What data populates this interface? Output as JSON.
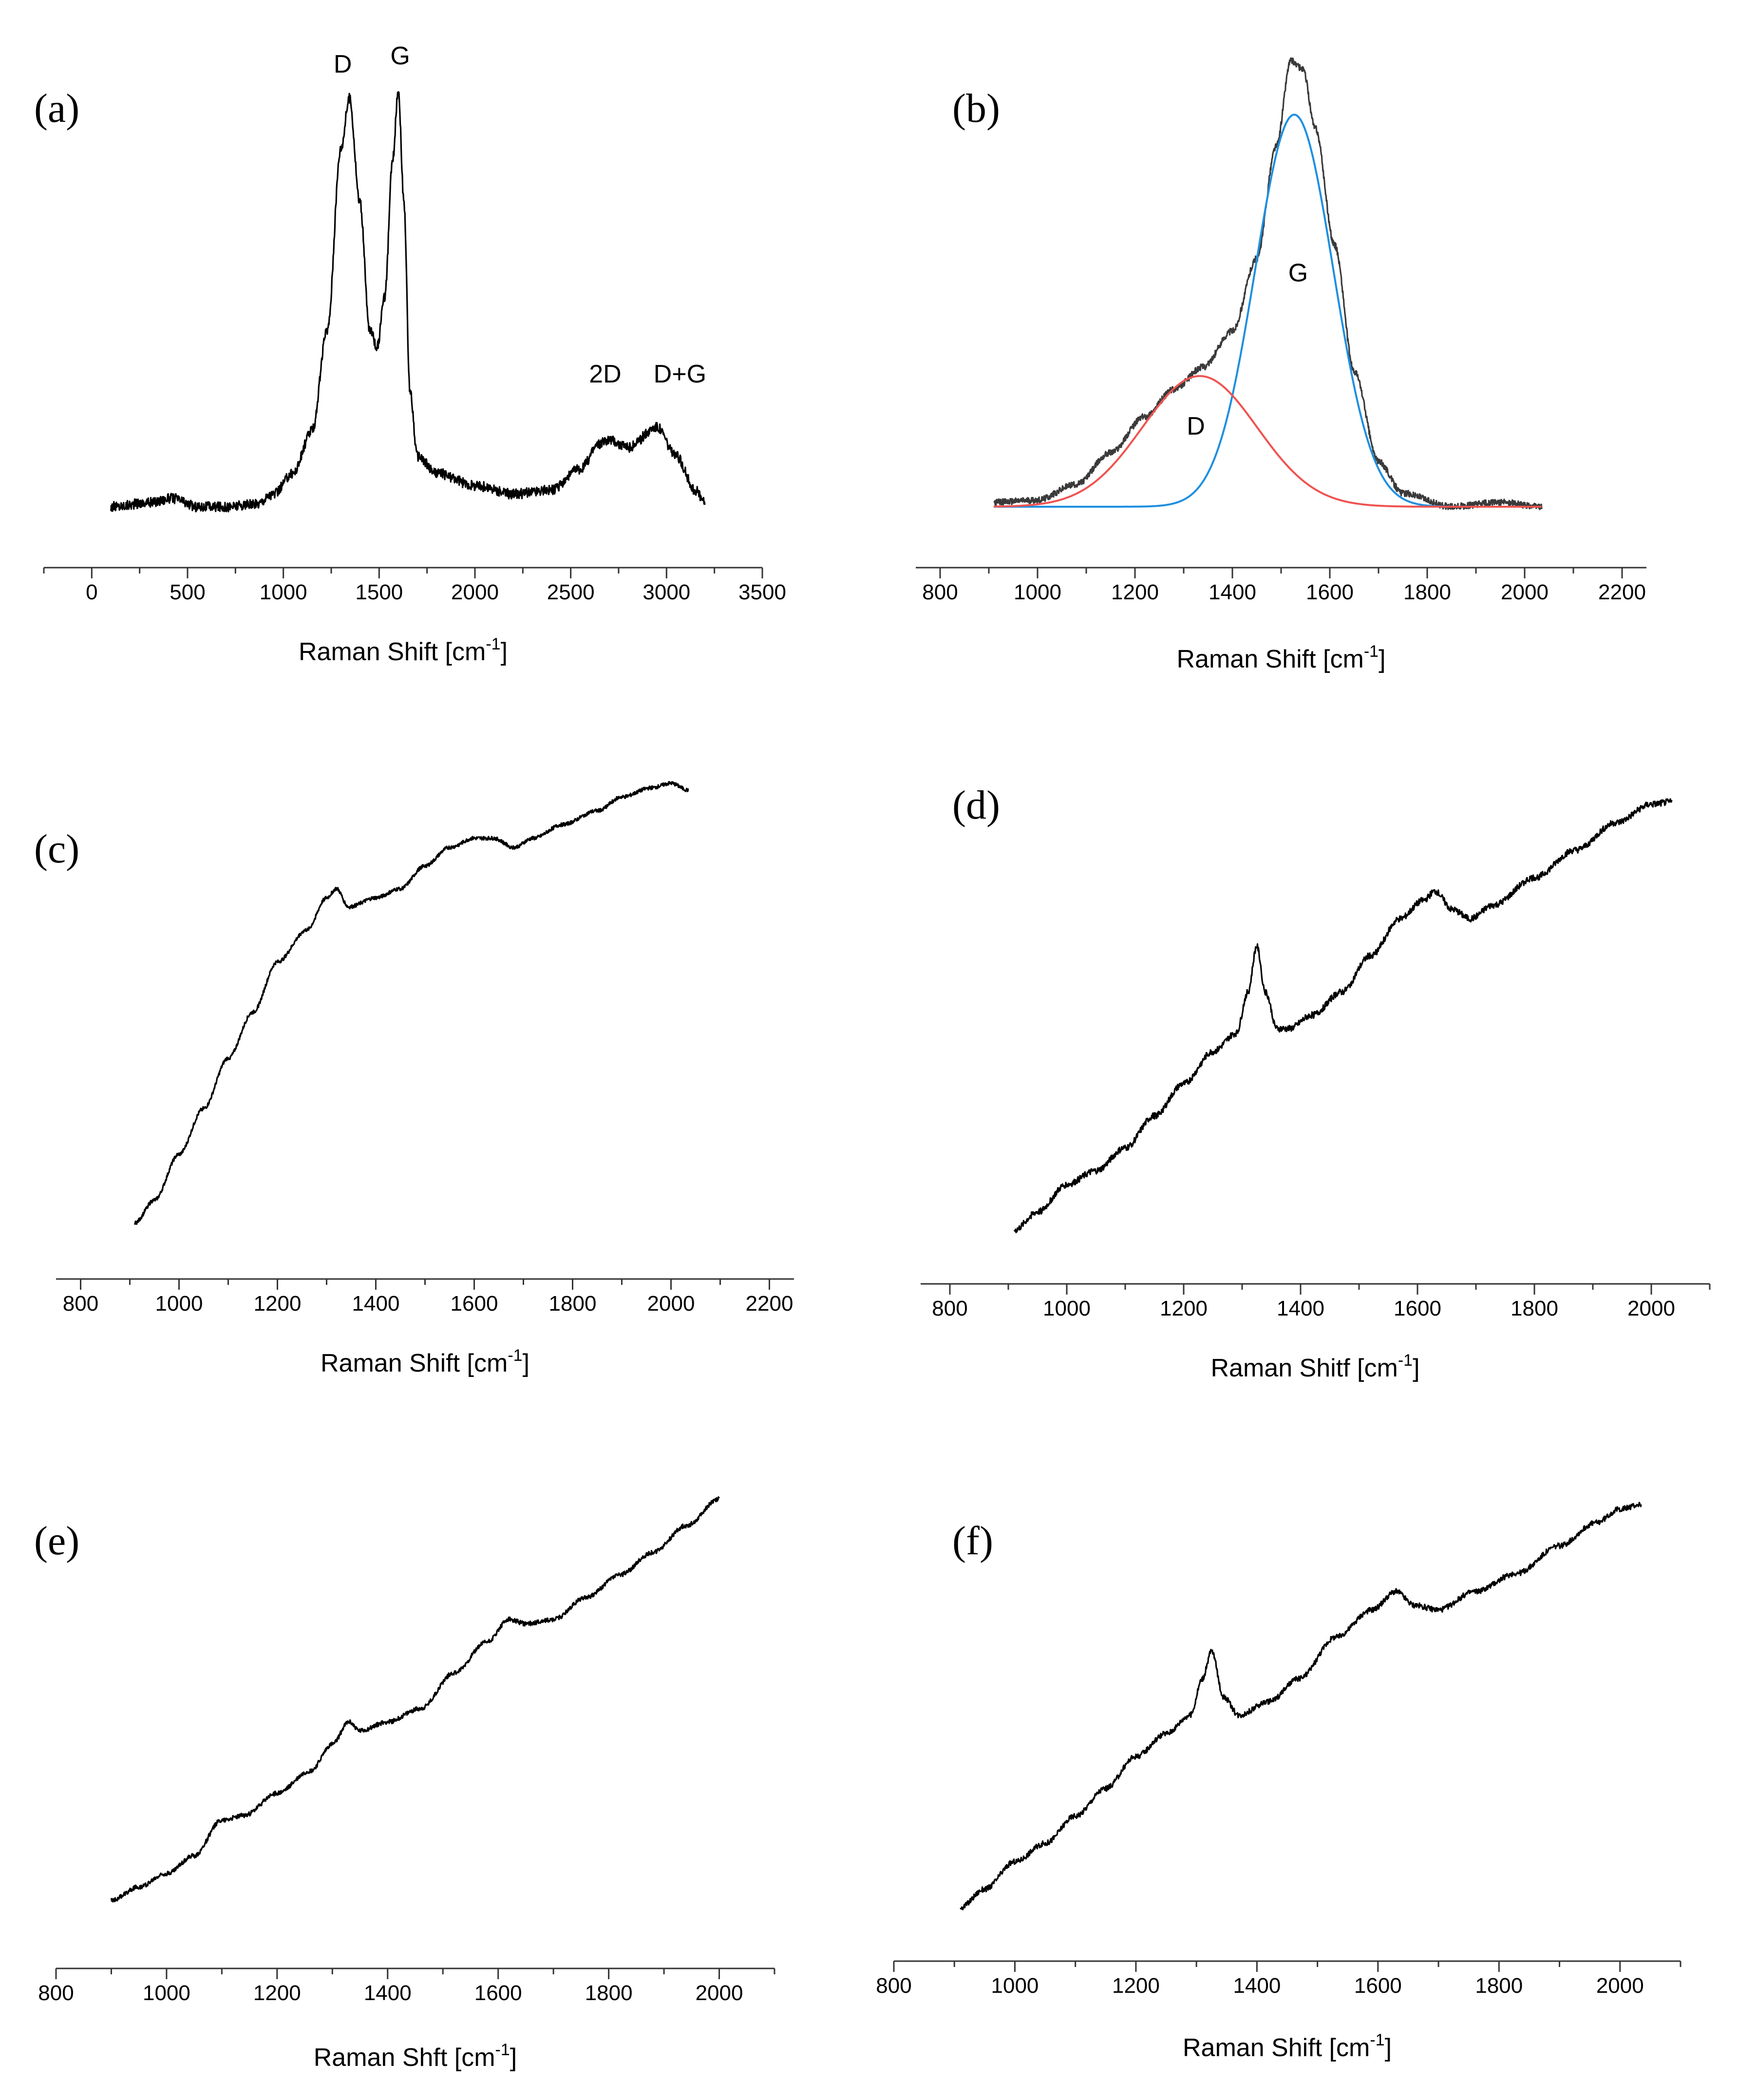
{
  "chart_data": [
    {
      "panel": "(a)",
      "type": "line",
      "xlabel": "Raman Shift [cm",
      "xlabel_sup": "-1",
      "xlabel_suffix": "]",
      "xlim": [
        -250,
        3500
      ],
      "xticks": [
        0,
        500,
        1000,
        1500,
        2000,
        2500,
        3000,
        3500
      ],
      "xrange_data": [
        100,
        3200
      ],
      "annotations": [
        {
          "text": "D",
          "x": 1310,
          "y": 1.03
        },
        {
          "text": "G",
          "x": 1610,
          "y": 1.05
        },
        {
          "text": "2D",
          "x": 2680,
          "y": 0.295
        },
        {
          "text": "D+G",
          "x": 3070,
          "y": 0.295
        }
      ],
      "series": [
        {
          "name": "spectrum",
          "color": "#000000",
          "points": [
            [
              100,
              0.0
            ],
            [
              300,
              0.01
            ],
            [
              420,
              0.02
            ],
            [
              550,
              0.0
            ],
            [
              700,
              0.0
            ],
            [
              850,
              0.005
            ],
            [
              950,
              0.03
            ],
            [
              1050,
              0.08
            ],
            [
              1150,
              0.18
            ],
            [
              1230,
              0.42
            ],
            [
              1300,
              0.85
            ],
            [
              1345,
              0.97
            ],
            [
              1400,
              0.72
            ],
            [
              1450,
              0.42
            ],
            [
              1490,
              0.38
            ],
            [
              1530,
              0.5
            ],
            [
              1570,
              0.82
            ],
            [
              1600,
              0.99
            ],
            [
              1630,
              0.72
            ],
            [
              1660,
              0.28
            ],
            [
              1700,
              0.12
            ],
            [
              1800,
              0.08
            ],
            [
              2000,
              0.05
            ],
            [
              2200,
              0.03
            ],
            [
              2400,
              0.04
            ],
            [
              2550,
              0.09
            ],
            [
              2650,
              0.15
            ],
            [
              2700,
              0.16
            ],
            [
              2800,
              0.14
            ],
            [
              2950,
              0.19
            ],
            [
              3050,
              0.12
            ],
            [
              3150,
              0.04
            ],
            [
              3200,
              0.01
            ]
          ],
          "noise": 0.012
        }
      ]
    },
    {
      "panel": "(b)",
      "type": "line",
      "xlabel": "Raman Shift [cm",
      "xlabel_sup": "-1",
      "xlabel_suffix": "]",
      "xlim": [
        750,
        2250
      ],
      "xticks": [
        800,
        1000,
        1200,
        1400,
        1600,
        1800,
        2000,
        2200
      ],
      "xrange_data": [
        910,
        2035
      ],
      "annotations": [
        {
          "text": "G",
          "x": 1535,
          "y": 0.5
        },
        {
          "text": "D",
          "x": 1325,
          "y": 0.16
        }
      ],
      "series": [
        {
          "name": "spectrum",
          "color": "#3a3a3a",
          "points": [
            [
              910,
              0.01
            ],
            [
              1000,
              0.015
            ],
            [
              1080,
              0.05
            ],
            [
              1150,
              0.12
            ],
            [
              1220,
              0.2
            ],
            [
              1280,
              0.26
            ],
            [
              1340,
              0.31
            ],
            [
              1400,
              0.39
            ],
            [
              1450,
              0.55
            ],
            [
              1490,
              0.8
            ],
            [
              1520,
              0.99
            ],
            [
              1545,
              0.97
            ],
            [
              1570,
              0.84
            ],
            [
              1610,
              0.58
            ],
            [
              1650,
              0.3
            ],
            [
              1700,
              0.1
            ],
            [
              1750,
              0.03
            ],
            [
              1850,
              0.0
            ],
            [
              1950,
              0.01
            ],
            [
              2035,
              0.0
            ]
          ],
          "noise": 0.007
        },
        {
          "name": "G fit",
          "color": "#1e8fe0",
          "gaussian": {
            "amplitude": 0.87,
            "center": 1527,
            "sigma": 80
          }
        },
        {
          "name": "D fit",
          "color": "#ef5350",
          "gaussian": {
            "amplitude": 0.29,
            "center": 1333,
            "sigma": 118
          }
        }
      ]
    },
    {
      "panel": "(c)",
      "type": "line",
      "xlabel": "Raman Shift [cm",
      "xlabel_sup": "-1",
      "xlabel_suffix": "]",
      "xlim": [
        750,
        2250
      ],
      "xticks": [
        800,
        1000,
        1200,
        1400,
        1600,
        1800,
        2000,
        2200
      ],
      "xrange_data": [
        910,
        2035
      ],
      "annotations": [],
      "series": [
        {
          "name": "spectrum",
          "color": "#000000",
          "points": [
            [
              910,
              0.0
            ],
            [
              950,
              0.05
            ],
            [
              1000,
              0.15
            ],
            [
              1050,
              0.25
            ],
            [
              1100,
              0.36
            ],
            [
              1150,
              0.46
            ],
            [
              1200,
              0.57
            ],
            [
              1260,
              0.64
            ],
            [
              1300,
              0.71
            ],
            [
              1320,
              0.73
            ],
            [
              1345,
              0.69
            ],
            [
              1400,
              0.71
            ],
            [
              1450,
              0.73
            ],
            [
              1500,
              0.78
            ],
            [
              1550,
              0.82
            ],
            [
              1600,
              0.84
            ],
            [
              1640,
              0.84
            ],
            [
              1680,
              0.82
            ],
            [
              1720,
              0.84
            ],
            [
              1780,
              0.87
            ],
            [
              1850,
              0.9
            ],
            [
              1900,
              0.93
            ],
            [
              1960,
              0.95
            ],
            [
              2000,
              0.96
            ],
            [
              2035,
              0.945
            ]
          ],
          "noise": 0.004
        }
      ]
    },
    {
      "panel": "(d)",
      "type": "line",
      "xlabel": "Raman Shitf [cm",
      "xlabel_sup": "-1",
      "xlabel_suffix": "]",
      "xlim": [
        750,
        2100
      ],
      "xticks": [
        800,
        1000,
        1200,
        1400,
        1600,
        1800,
        2000
      ],
      "xrange_data": [
        910,
        2035
      ],
      "annotations": [],
      "series": [
        {
          "name": "spectrum",
          "color": "#000000",
          "points": [
            [
              910,
              0.0
            ],
            [
              950,
              0.04
            ],
            [
              1000,
              0.1
            ],
            [
              1050,
              0.13
            ],
            [
              1100,
              0.18
            ],
            [
              1150,
              0.25
            ],
            [
              1200,
              0.32
            ],
            [
              1250,
              0.39
            ],
            [
              1290,
              0.43
            ],
            [
              1310,
              0.52
            ],
            [
              1325,
              0.62
            ],
            [
              1340,
              0.52
            ],
            [
              1360,
              0.44
            ],
            [
              1380,
              0.44
            ],
            [
              1420,
              0.47
            ],
            [
              1470,
              0.52
            ],
            [
              1520,
              0.6
            ],
            [
              1570,
              0.68
            ],
            [
              1610,
              0.72
            ],
            [
              1630,
              0.74
            ],
            [
              1660,
              0.7
            ],
            [
              1690,
              0.68
            ],
            [
              1730,
              0.71
            ],
            [
              1800,
              0.77
            ],
            [
              1870,
              0.83
            ],
            [
              1940,
              0.89
            ],
            [
              2000,
              0.93
            ],
            [
              2035,
              0.935
            ]
          ],
          "noise": 0.007
        }
      ]
    },
    {
      "panel": "(e)",
      "type": "line",
      "xlabel": "Raman Shft [cm",
      "xlabel_sup": "-1",
      "xlabel_suffix": "]",
      "xlim": [
        800,
        2100
      ],
      "xticks": [
        800,
        1000,
        1200,
        1400,
        1600,
        1800,
        2000
      ],
      "xrange_data": [
        900,
        2000
      ],
      "annotations": [],
      "series": [
        {
          "name": "spectrum",
          "color": "#000000",
          "points": [
            [
              900,
              0.0
            ],
            [
              950,
              0.03
            ],
            [
              1000,
              0.06
            ],
            [
              1050,
              0.1
            ],
            [
              1100,
              0.18
            ],
            [
              1140,
              0.19
            ],
            [
              1200,
              0.24
            ],
            [
              1260,
              0.29
            ],
            [
              1300,
              0.35
            ],
            [
              1330,
              0.4
            ],
            [
              1350,
              0.38
            ],
            [
              1400,
              0.4
            ],
            [
              1460,
              0.43
            ],
            [
              1520,
              0.51
            ],
            [
              1580,
              0.58
            ],
            [
              1620,
              0.63
            ],
            [
              1650,
              0.62
            ],
            [
              1700,
              0.63
            ],
            [
              1760,
              0.68
            ],
            [
              1820,
              0.73
            ],
            [
              1880,
              0.78
            ],
            [
              1940,
              0.84
            ],
            [
              2000,
              0.9
            ]
          ],
          "noise": 0.005
        }
      ]
    },
    {
      "panel": "(f)",
      "type": "line",
      "xlabel": "Raman Shift [cm",
      "xlabel_sup": "-1",
      "xlabel_suffix": "]",
      "xlim": [
        800,
        2100
      ],
      "xticks": [
        800,
        1000,
        1200,
        1400,
        1600,
        1800,
        2000
      ],
      "xrange_data": [
        910,
        2035
      ],
      "annotations": [],
      "series": [
        {
          "name": "spectrum",
          "color": "#000000",
          "points": [
            [
              910,
              0.0
            ],
            [
              950,
              0.04
            ],
            [
              1000,
              0.1
            ],
            [
              1050,
              0.14
            ],
            [
              1100,
              0.2
            ],
            [
              1150,
              0.26
            ],
            [
              1200,
              0.33
            ],
            [
              1250,
              0.38
            ],
            [
              1290,
              0.42
            ],
            [
              1310,
              0.5
            ],
            [
              1325,
              0.56
            ],
            [
              1345,
              0.46
            ],
            [
              1370,
              0.42
            ],
            [
              1420,
              0.45
            ],
            [
              1470,
              0.5
            ],
            [
              1530,
              0.59
            ],
            [
              1590,
              0.65
            ],
            [
              1630,
              0.69
            ],
            [
              1660,
              0.66
            ],
            [
              1700,
              0.65
            ],
            [
              1760,
              0.69
            ],
            [
              1830,
              0.73
            ],
            [
              1900,
              0.79
            ],
            [
              1960,
              0.84
            ],
            [
              2000,
              0.87
            ],
            [
              2035,
              0.88
            ]
          ],
          "noise": 0.006
        }
      ]
    }
  ]
}
